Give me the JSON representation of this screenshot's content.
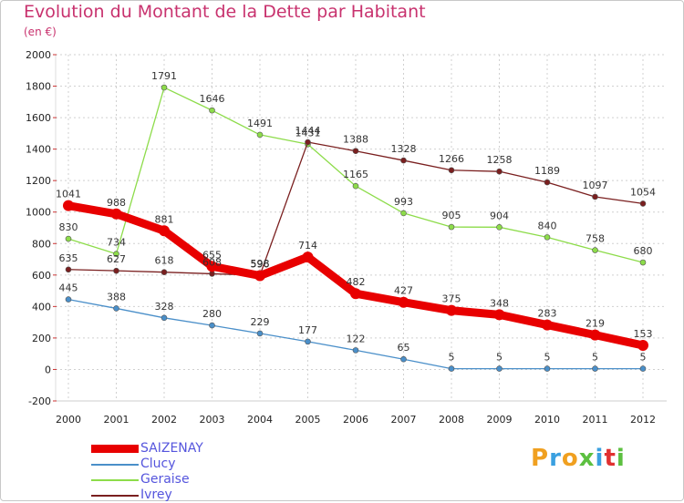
{
  "header": {
    "title": "Evolution du Montant de la Dette par Habitant",
    "subtitle": "(en €)"
  },
  "logo": {
    "text": "Proxiti"
  },
  "colors": {
    "SAIZENAY": "#e80000",
    "Clucy": "#4a8fc9",
    "Geraise": "#8ddc4a",
    "Ivrey": "#7a1f1f",
    "title": "#c8326e"
  },
  "chart_data": {
    "type": "line",
    "title": "Evolution du Montant de la Dette par Habitant",
    "subtitle": "(en €)",
    "xlabel": "",
    "ylabel": "",
    "x": [
      "2000",
      "2001",
      "2002",
      "2003",
      "2004",
      "2005",
      "2006",
      "2007",
      "2008",
      "2009",
      "2010",
      "2011",
      "2012"
    ],
    "ylim": [
      -200,
      2000
    ],
    "yticks": [
      -200,
      0,
      200,
      400,
      600,
      800,
      1000,
      1200,
      1400,
      1600,
      1800,
      2000
    ],
    "grid": true,
    "legend_position": "bottom-left",
    "series": [
      {
        "name": "SAIZENAY",
        "values": [
          1041,
          988,
          881,
          655,
          596,
          714,
          482,
          427,
          375,
          348,
          283,
          219,
          153
        ]
      },
      {
        "name": "Clucy",
        "values": [
          445,
          388,
          328,
          280,
          229,
          177,
          122,
          65,
          5,
          5,
          5,
          5,
          5
        ]
      },
      {
        "name": "Geraise",
        "values": [
          830,
          734,
          1791,
          1646,
          1491,
          1431,
          1165,
          993,
          905,
          904,
          840,
          758,
          680
        ]
      },
      {
        "name": "Ivrey",
        "values": [
          635,
          627,
          618,
          608,
          598,
          1444,
          1388,
          1328,
          1266,
          1258,
          1189,
          1097,
          1054
        ]
      }
    ]
  }
}
